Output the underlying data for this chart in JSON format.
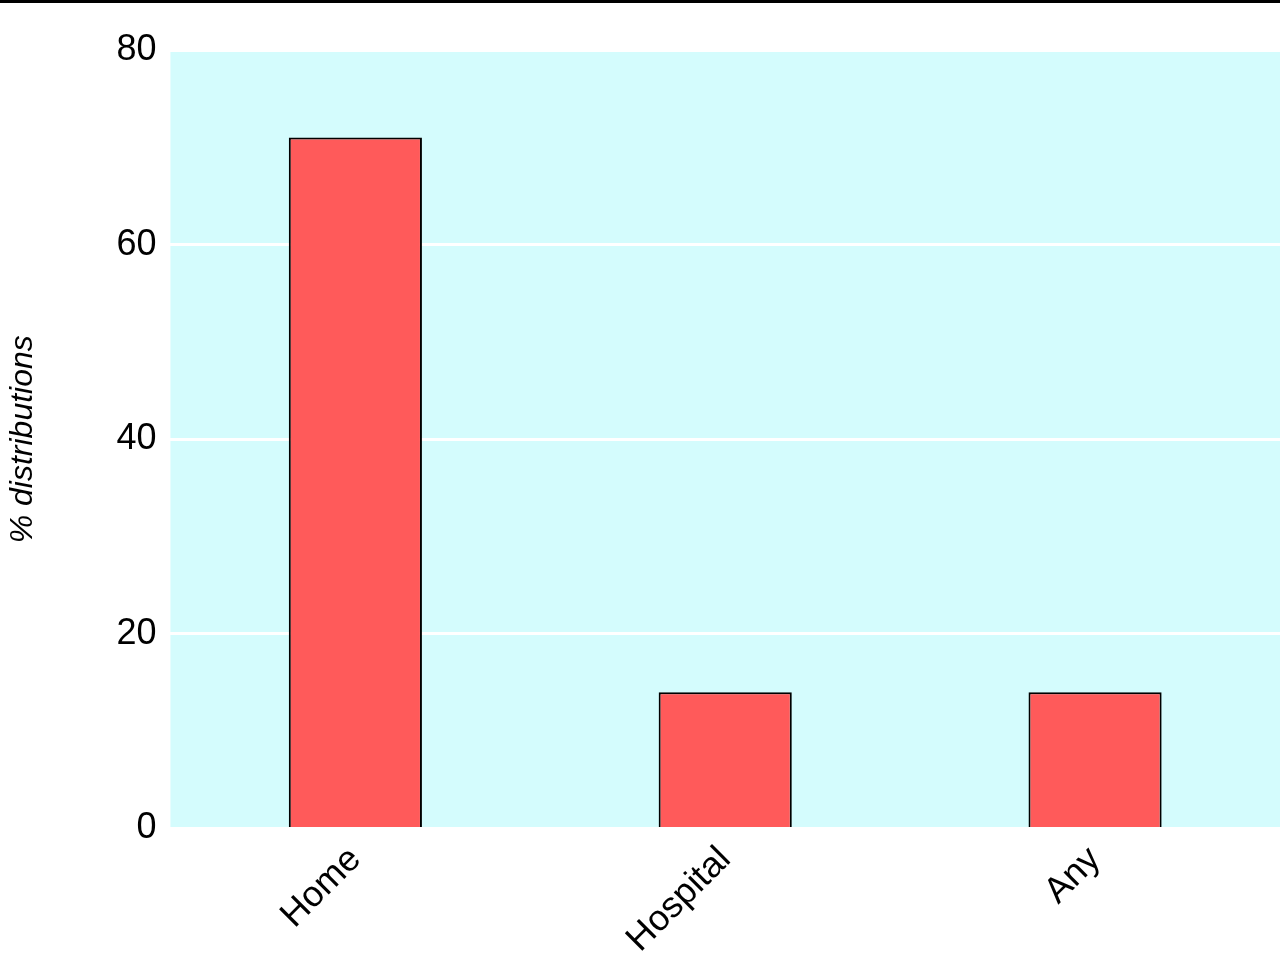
{
  "chart_data": {
    "type": "bar",
    "ylabel": "% distributions",
    "categories": [
      "Home",
      "Hospital",
      "Any"
    ],
    "values": [
      71,
      14,
      14
    ],
    "color": "#ff5a5a",
    "ylim": [
      0,
      80
    ],
    "yticks": [
      0,
      20,
      40,
      60,
      80
    ],
    "grid": "y",
    "legend": false
  }
}
